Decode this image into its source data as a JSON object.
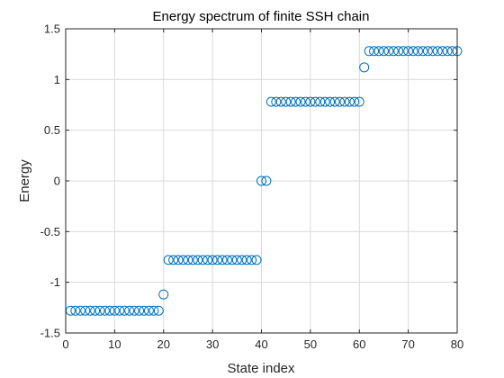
{
  "chart_data": {
    "type": "scatter",
    "title": "Energy spectrum of finite SSH chain",
    "xlabel": "State index",
    "ylabel": "Energy",
    "xlim": [
      0,
      80
    ],
    "ylim": [
      -1.5,
      1.5
    ],
    "xticks": [
      0,
      10,
      20,
      30,
      40,
      50,
      60,
      70,
      80
    ],
    "xtick_labels": [
      "0",
      "10",
      "20",
      "30",
      "40",
      "50",
      "60",
      "70",
      "80"
    ],
    "yticks": [
      -1.5,
      -1,
      -0.5,
      0,
      0.5,
      1,
      1.5
    ],
    "ytick_labels": [
      "-1.5",
      "-1",
      "-0.5",
      "0",
      "0.5",
      "1",
      "1.5"
    ],
    "grid": true,
    "marker": "circle",
    "series": [
      {
        "color": "#0072bd",
        "x": [
          1,
          2,
          3,
          4,
          5,
          6,
          7,
          8,
          9,
          10,
          11,
          12,
          13,
          14,
          15,
          16,
          17,
          18,
          19,
          20,
          21,
          22,
          23,
          24,
          25,
          26,
          27,
          28,
          29,
          30,
          31,
          32,
          33,
          34,
          35,
          36,
          37,
          38,
          39,
          40,
          41,
          42,
          43,
          44,
          45,
          46,
          47,
          48,
          49,
          50,
          51,
          52,
          53,
          54,
          55,
          56,
          57,
          58,
          59,
          60,
          61,
          62,
          63,
          64,
          65,
          66,
          67,
          68,
          69,
          70,
          71,
          72,
          73,
          74,
          75,
          76,
          77,
          78,
          79,
          80
        ],
        "y": [
          -1.28,
          -1.28,
          -1.28,
          -1.28,
          -1.28,
          -1.28,
          -1.28,
          -1.28,
          -1.28,
          -1.28,
          -1.28,
          -1.28,
          -1.28,
          -1.28,
          -1.28,
          -1.28,
          -1.28,
          -1.28,
          -1.28,
          -1.12,
          -0.78,
          -0.78,
          -0.78,
          -0.78,
          -0.78,
          -0.78,
          -0.78,
          -0.78,
          -0.78,
          -0.78,
          -0.78,
          -0.78,
          -0.78,
          -0.78,
          -0.78,
          -0.78,
          -0.78,
          -0.78,
          -0.78,
          0,
          0,
          0.78,
          0.78,
          0.78,
          0.78,
          0.78,
          0.78,
          0.78,
          0.78,
          0.78,
          0.78,
          0.78,
          0.78,
          0.78,
          0.78,
          0.78,
          0.78,
          0.78,
          0.78,
          0.78,
          1.12,
          1.28,
          1.28,
          1.28,
          1.28,
          1.28,
          1.28,
          1.28,
          1.28,
          1.28,
          1.28,
          1.28,
          1.28,
          1.28,
          1.28,
          1.28,
          1.28,
          1.28,
          1.28,
          1.28
        ]
      }
    ]
  }
}
